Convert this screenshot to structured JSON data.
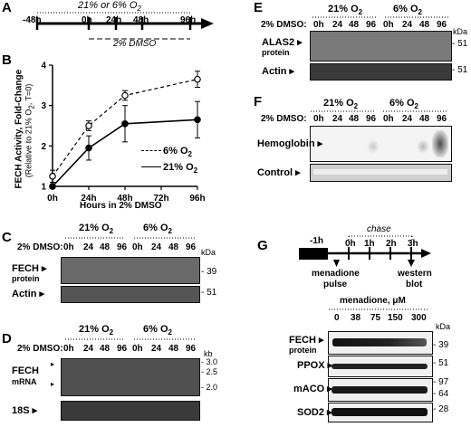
{
  "panels": {
    "A": {
      "letter": "A",
      "top_label": "21% or 6% O",
      "top_label_sub": "2",
      "ticks": [
        "-48h",
        "0h",
        "24h",
        "48h",
        "96h"
      ],
      "bottom_label": "2% DMSO"
    },
    "B": {
      "letter": "B",
      "ylabel_line1": "FECH Activity, Fold-Change",
      "ylabel_line2": "(Relative to 21% O",
      "ylabel_line2_sub": "2",
      "ylabel_line2_end": ", T=0)",
      "xlabel": "Hours in 2% DMSO",
      "x_ticks": [
        "0h",
        "24h",
        "48h",
        "72h",
        "96h"
      ],
      "y_ticks": [
        "1",
        "2",
        "3",
        "4"
      ],
      "legend": [
        {
          "label": "6% O",
          "sub": "2"
        },
        {
          "label": "21% O",
          "sub": "2"
        }
      ]
    },
    "C": {
      "letter": "C",
      "groups": [
        {
          "label": "21% O",
          "sub": "2"
        },
        {
          "label": "6% O",
          "sub": "2"
        }
      ],
      "dmso_label": "2% DMSO:",
      "lanes": [
        "0h",
        "24",
        "48",
        "96",
        "0h",
        "24",
        "48",
        "96"
      ],
      "kda": "kDa",
      "rows": [
        {
          "label": "FECH",
          "sublabel": "protein",
          "marker": "39"
        },
        {
          "label": "Actin",
          "sublabel": "",
          "marker": "51"
        }
      ]
    },
    "D": {
      "letter": "D",
      "groups": [
        {
          "label": "21% O",
          "sub": "2"
        },
        {
          "label": "6% O",
          "sub": "2"
        }
      ],
      "dmso_label": "2% DMSO:",
      "lanes": [
        "0h",
        "24",
        "48",
        "96",
        "0h",
        "24",
        "48",
        "96"
      ],
      "kb": "kb",
      "markers": [
        "3.0",
        "2.5",
        "2.0"
      ],
      "rows": [
        {
          "label": "FECH",
          "sublabel": "mRNA"
        },
        {
          "label": "18S",
          "sublabel": ""
        }
      ]
    },
    "E": {
      "letter": "E",
      "groups": [
        {
          "label": "21% O",
          "sub": "2"
        },
        {
          "label": "6% O",
          "sub": "2"
        }
      ],
      "dmso_label": "2% DMSO:",
      "lanes": [
        "0h",
        "24",
        "48",
        "96",
        "0h",
        "24",
        "48",
        "96"
      ],
      "kda": "kDa",
      "rows": [
        {
          "label": "ALAS2",
          "sublabel": "protein",
          "marker": "51"
        },
        {
          "label": "Actin",
          "sublabel": "",
          "marker": "51"
        }
      ]
    },
    "F": {
      "letter": "F",
      "groups": [
        {
          "label": "21% O",
          "sub": "2"
        },
        {
          "label": "6% O",
          "sub": "2"
        }
      ],
      "dmso_label": "2% DMSO:",
      "lanes": [
        "0h",
        "24",
        "48",
        "96",
        "0h",
        "24",
        "48",
        "96"
      ],
      "rows": [
        {
          "label": "Hemoglobin"
        },
        {
          "label": "Control"
        }
      ]
    },
    "G": {
      "letter": "G",
      "chase_label": "chase",
      "ticks": [
        "-1h",
        "0h",
        "1h",
        "2h",
        "3h"
      ],
      "pulse_label_1": "menadione",
      "pulse_label_2": "pulse",
      "blot_label_1": "western",
      "blot_label_2": "blot",
      "conc_label": "menadione, μM",
      "concs": [
        "0",
        "38",
        "75",
        "150",
        "300"
      ],
      "kda": "kDa",
      "rows": [
        {
          "label": "FECH",
          "sublabel": "protein",
          "marker": "39"
        },
        {
          "label": "PPOX",
          "sublabel": "",
          "marker": "51"
        },
        {
          "label": "mACO",
          "sublabel": "",
          "marker": "97"
        },
        {
          "label": "",
          "sublabel": "",
          "marker": "64"
        },
        {
          "label": "SOD2",
          "sublabel": "",
          "marker": "28"
        }
      ]
    }
  },
  "chart_data": {
    "type": "line",
    "title": "",
    "xlabel": "Hours in 2% DMSO",
    "ylabel": "FECH Activity, Fold-Change (Relative to 21% O2, T=0)",
    "x": [
      0,
      24,
      48,
      96
    ],
    "x_ticks": [
      "0h",
      "24h",
      "48h",
      "72h",
      "96h"
    ],
    "xlim": [
      0,
      96
    ],
    "ylim": [
      1,
      4
    ],
    "series": [
      {
        "name": "6% O2",
        "style": "dashed-open-circle",
        "values": [
          1.25,
          2.5,
          3.25,
          3.65
        ],
        "errors": [
          0.15,
          0.12,
          0.12,
          0.2
        ]
      },
      {
        "name": "21% O2",
        "style": "solid-filled-circle",
        "values": [
          1.0,
          1.95,
          2.55,
          2.65
        ],
        "errors": [
          0.05,
          0.3,
          0.45,
          0.45
        ]
      }
    ],
    "legend": "right"
  }
}
